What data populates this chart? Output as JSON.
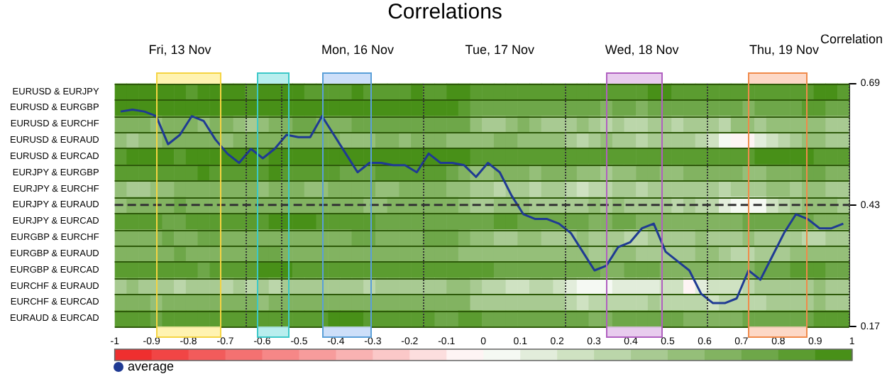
{
  "chart_data": {
    "type": "heatmap",
    "title": "Correlations",
    "y2label": "Correlation",
    "categories": [
      null,
      null,
      null,
      null,
      null,
      "Fri, 13 Nov",
      null,
      null,
      null,
      null,
      null,
      null,
      null,
      null,
      null,
      null,
      null,
      null,
      null,
      null,
      "Mon, 16 Nov",
      null,
      null,
      null,
      null,
      null,
      null,
      null,
      null,
      null,
      null,
      null,
      "Tue, 17 Nov",
      null,
      null,
      null,
      null,
      null,
      null,
      null,
      null,
      null,
      null,
      null,
      "Wed, 18 Nov",
      null,
      null,
      null,
      null,
      null,
      null,
      null,
      null,
      null,
      null,
      null,
      "Thu, 19 Nov",
      null,
      null,
      null,
      null,
      null
    ],
    "y_categories": [
      "EURUSD & EURJPY",
      "EURUSD & EURGBP",
      "EURUSD & EURCHF",
      "EURUSD & EURAUD",
      "EURUSD & EURCAD",
      "EURJPY & EURGBP",
      "EURJPY & EURCHF",
      "EURJPY & EURAUD",
      "EURJPY & EURCAD",
      "EURGBP & EURCHF",
      "EURGBP & EURAUD",
      "EURGBP & EURCAD",
      "EURCHF & EURAUD",
      "EURCHF & EURCAD",
      "EURAUD & EURCAD"
    ],
    "cells": [
      [
        0.9,
        0.9,
        0.9,
        0.9,
        0.9,
        0.9,
        0.8,
        0.9,
        0.9,
        0.9,
        0.9,
        0.8,
        0.9,
        0.9,
        0.9,
        0.9,
        0.8,
        0.8,
        0.8,
        0.8,
        0.9,
        0.8,
        0.8,
        0.8,
        0.8,
        0.9,
        0.8,
        0.8,
        0.9,
        0.9,
        0.8,
        0.8,
        0.8,
        0.8,
        0.8,
        0.8,
        0.8,
        0.8,
        0.8,
        0.8,
        0.8,
        0.8,
        0.8,
        0.8,
        0.8,
        0.9,
        0.9,
        0.8,
        0.8,
        0.8,
        0.8,
        0.8,
        0.8,
        0.8,
        0.8,
        0.8,
        0.8,
        0.8,
        0.8,
        0.9,
        0.9,
        0.8
      ],
      [
        0.9,
        0.9,
        0.9,
        0.9,
        0.9,
        0.9,
        0.9,
        0.9,
        0.9,
        0.9,
        0.9,
        0.9,
        0.9,
        0.9,
        0.9,
        0.9,
        0.9,
        0.9,
        0.9,
        0.9,
        0.9,
        0.9,
        0.9,
        0.9,
        0.9,
        0.9,
        0.9,
        0.9,
        0.9,
        0.8,
        0.7,
        0.7,
        0.7,
        0.7,
        0.7,
        0.7,
        0.7,
        0.7,
        0.7,
        0.7,
        0.7,
        0.6,
        0.7,
        0.7,
        0.6,
        0.7,
        0.7,
        0.7,
        0.7,
        0.7,
        0.7,
        0.7,
        0.7,
        0.6,
        0.7,
        0.7,
        0.7,
        0.7,
        0.8,
        0.8,
        0.7,
        0.7
      ],
      [
        0.6,
        0.6,
        0.6,
        0.5,
        0.6,
        0.6,
        0.6,
        0.5,
        0.6,
        0.6,
        0.5,
        0.4,
        0.5,
        0.6,
        0.6,
        0.7,
        0.7,
        0.6,
        0.6,
        0.6,
        0.7,
        0.7,
        0.7,
        0.7,
        0.7,
        0.7,
        0.7,
        0.7,
        0.7,
        0.7,
        0.5,
        0.4,
        0.4,
        0.5,
        0.6,
        0.5,
        0.4,
        0.4,
        0.4,
        0.5,
        0.4,
        0.3,
        0.4,
        0.3,
        0.3,
        0.4,
        0.4,
        0.3,
        0.4,
        0.4,
        0.4,
        0.3,
        0.5,
        0.5,
        0.4,
        0.5,
        0.5,
        0.5,
        0.5,
        0.5,
        0.4,
        0.4
      ],
      [
        0.5,
        0.4,
        0.5,
        0.5,
        0.6,
        0.6,
        0.6,
        0.6,
        0.6,
        0.5,
        0.6,
        0.6,
        0.6,
        0.6,
        0.6,
        0.6,
        0.6,
        0.6,
        0.6,
        0.5,
        0.5,
        0.5,
        0.6,
        0.6,
        0.5,
        0.6,
        0.6,
        0.6,
        0.5,
        0.5,
        0.5,
        0.5,
        0.6,
        0.6,
        0.5,
        0.5,
        0.5,
        0.5,
        0.4,
        0.3,
        0.4,
        0.5,
        0.4,
        0.4,
        0.3,
        0.4,
        0.4,
        0.4,
        0.4,
        0.3,
        0.2,
        0,
        -0.1,
        -0.1,
        0.1,
        0.2,
        0.3,
        0.4,
        0.5,
        0.5,
        0.4,
        0.4
      ],
      [
        0.8,
        0.9,
        0.9,
        0.9,
        0.9,
        0.8,
        0.9,
        0.9,
        0.9,
        0.9,
        0.9,
        0.9,
        0.8,
        0.9,
        0.9,
        0.9,
        0.9,
        0.9,
        0.9,
        0.9,
        0.9,
        0.9,
        0.9,
        0.9,
        0.9,
        0.9,
        0.9,
        0.9,
        0.9,
        0.9,
        0.8,
        0.8,
        0.8,
        0.8,
        0.8,
        0.8,
        0.8,
        0.8,
        0.8,
        0.8,
        0.8,
        0.8,
        0.8,
        0.8,
        0.8,
        0.8,
        0.8,
        0.8,
        0.8,
        0.8,
        0.8,
        0.8,
        0.8,
        0.8,
        0.9,
        0.9,
        0.9,
        0.9,
        0.9,
        0.8,
        0.8,
        0.8
      ],
      [
        0.8,
        0.8,
        0.8,
        0.8,
        0.8,
        0.8,
        0.8,
        0.9,
        0.8,
        0.8,
        0.8,
        0.8,
        0.8,
        0.9,
        0.8,
        0.8,
        0.8,
        0.8,
        0.8,
        0.7,
        0.7,
        0.7,
        0.8,
        0.8,
        0.8,
        0.8,
        0.8,
        0.8,
        0.7,
        0.6,
        0.5,
        0.5,
        0.6,
        0.6,
        0.6,
        0.5,
        0.6,
        0.6,
        0.6,
        0.5,
        0.5,
        0.4,
        0.5,
        0.5,
        0.6,
        0.6,
        0.5,
        0.5,
        0.6,
        0.6,
        0.6,
        0.6,
        0.6,
        0.5,
        0.5,
        0.6,
        0.6,
        0.6,
        0.7,
        0.7,
        0.6,
        0.6
      ],
      [
        0.5,
        0.4,
        0.4,
        0.5,
        0.5,
        0.6,
        0.6,
        0.6,
        0.6,
        0.6,
        0.6,
        0.6,
        0.5,
        0.6,
        0.6,
        0.6,
        0.5,
        0.5,
        0.6,
        0.6,
        0.6,
        0.6,
        0.5,
        0.5,
        0.6,
        0.6,
        0.6,
        0.6,
        0.5,
        0.5,
        0.4,
        0.4,
        0.3,
        0.4,
        0.4,
        0.3,
        0.4,
        0.4,
        0.3,
        0.2,
        0.3,
        0.3,
        0.4,
        0.4,
        0.3,
        0.4,
        0.4,
        0.4,
        0.4,
        0.4,
        0.4,
        0.3,
        0.4,
        0.4,
        0.4,
        0.5,
        0.5,
        0.4,
        0.5,
        0.5,
        0.4,
        0.4
      ],
      [
        0.5,
        0.6,
        0.6,
        0.6,
        0.6,
        0.7,
        0.6,
        0.6,
        0.6,
        0.6,
        0.6,
        0.6,
        0.6,
        0.6,
        0.6,
        0.6,
        0.6,
        0.6,
        0.6,
        0.6,
        0.6,
        0.5,
        0.5,
        0.6,
        0.6,
        0.6,
        0.6,
        0.6,
        0.6,
        0.5,
        0.4,
        0.4,
        0.5,
        0.5,
        0.5,
        0.4,
        0.4,
        0.4,
        0.4,
        0.4,
        0.5,
        0.4,
        0.5,
        0.4,
        0.4,
        0.4,
        0.4,
        0.3,
        0.4,
        0.3,
        0.3,
        0.1,
        0,
        0,
        0,
        0.2,
        0.3,
        0.4,
        0.5,
        0.5,
        0.5,
        0.4
      ],
      [
        0.8,
        0.8,
        0.8,
        0.8,
        0.7,
        0.7,
        0.8,
        0.8,
        0.8,
        0.8,
        0.8,
        0.8,
        0.8,
        0.9,
        0.9,
        0.9,
        0.9,
        0.8,
        0.8,
        0.8,
        0.8,
        0.8,
        0.7,
        0.7,
        0.7,
        0.7,
        0.7,
        0.7,
        0.7,
        0.7,
        0.7,
        0.7,
        0.8,
        0.8,
        0.7,
        0.7,
        0.7,
        0.7,
        0.7,
        0.7,
        0.6,
        0.6,
        0.7,
        0.7,
        0.6,
        0.6,
        0.6,
        0.6,
        0.6,
        0.6,
        0.6,
        0.6,
        0.6,
        0.7,
        0.7,
        0.7,
        0.7,
        0.7,
        0.7,
        0.6,
        0.6,
        0.6
      ],
      [
        0.6,
        0.6,
        0.6,
        0.6,
        0.7,
        0.6,
        0.6,
        0.7,
        0.7,
        0.6,
        0.6,
        0.6,
        0.6,
        0.6,
        0.6,
        0.6,
        0.6,
        0.6,
        0.6,
        0.6,
        0.7,
        0.7,
        0.6,
        0.6,
        0.6,
        0.6,
        0.7,
        0.7,
        0.7,
        0.6,
        0.5,
        0.5,
        0.4,
        0.4,
        0.5,
        0.5,
        0.4,
        0.4,
        0.4,
        0.5,
        0.4,
        0.4,
        0.4,
        0.3,
        0.3,
        0.4,
        0.4,
        0.4,
        0.4,
        0.5,
        0.4,
        0.4,
        0.4,
        0.5,
        0.4,
        0.4,
        0.4,
        0.4,
        0.3,
        0.3,
        0.4,
        0.4
      ],
      [
        0.6,
        0.6,
        0.6,
        0.6,
        0.6,
        0.7,
        0.6,
        0.6,
        0.6,
        0.6,
        0.6,
        0.6,
        0.7,
        0.7,
        0.6,
        0.6,
        0.6,
        0.6,
        0.6,
        0.6,
        0.6,
        0.6,
        0.6,
        0.6,
        0.6,
        0.6,
        0.6,
        0.6,
        0.6,
        0.5,
        0.5,
        0.5,
        0.5,
        0.5,
        0.5,
        0.5,
        0.5,
        0.5,
        0.5,
        0.5,
        0.4,
        0.4,
        0.5,
        0.5,
        0.4,
        0.4,
        0.4,
        0.4,
        0.4,
        0.5,
        0.5,
        0.4,
        0.3,
        0.3,
        0.4,
        0.4,
        0.4,
        0.5,
        0.5,
        0.5,
        0.5,
        0.5
      ],
      [
        0.8,
        0.8,
        0.8,
        0.8,
        0.8,
        0.8,
        0.8,
        0.7,
        0.8,
        0.8,
        0.8,
        0.8,
        0.9,
        0.9,
        0.9,
        0.8,
        0.8,
        0.8,
        0.8,
        0.8,
        0.8,
        0.8,
        0.8,
        0.8,
        0.8,
        0.8,
        0.8,
        0.8,
        0.8,
        0.8,
        0.8,
        0.8,
        0.7,
        0.7,
        0.7,
        0.7,
        0.7,
        0.7,
        0.7,
        0.7,
        0.7,
        0.6,
        0.6,
        0.7,
        0.7,
        0.7,
        0.6,
        0.6,
        0.6,
        0.6,
        0.6,
        0.6,
        0.6,
        0.6,
        0.7,
        0.7,
        0.7,
        0.8,
        0.8,
        0.8,
        0.7,
        0.7
      ],
      [
        0.4,
        0.5,
        0.4,
        0.4,
        0.4,
        0.3,
        0.4,
        0.4,
        0.4,
        0.3,
        0.4,
        0.3,
        0.4,
        0.3,
        0.4,
        0.4,
        0.4,
        0.4,
        0.4,
        0.4,
        0.4,
        0.3,
        0.4,
        0.4,
        0.4,
        0.4,
        0.4,
        0.4,
        0.5,
        0.5,
        0.4,
        0.3,
        0.3,
        0.2,
        0.2,
        0.3,
        0.3,
        0.2,
        0.1,
        0,
        0,
        0,
        0.1,
        0.1,
        0.1,
        0.1,
        0.2,
        0.2,
        -0.1,
        0.1,
        0.2,
        0.2,
        0.2,
        0.3,
        0.4,
        0.4,
        0.4,
        0.4,
        0.4,
        0.5,
        0.4,
        0.4
      ],
      [
        0.6,
        0.6,
        0.6,
        0.5,
        0.6,
        0.6,
        0.6,
        0.6,
        0.6,
        0.6,
        0.6,
        0.6,
        0.5,
        0.6,
        0.6,
        0.6,
        0.6,
        0.6,
        0.6,
        0.6,
        0.6,
        0.6,
        0.6,
        0.6,
        0.6,
        0.6,
        0.6,
        0.6,
        0.6,
        0.6,
        0.4,
        0.4,
        0.4,
        0.4,
        0.4,
        0.4,
        0.4,
        0.4,
        0.3,
        0.2,
        0.3,
        0.3,
        0.3,
        0.3,
        0.3,
        0.4,
        0.3,
        0.3,
        0.3,
        0.3,
        0.2,
        0.3,
        0.3,
        0.3,
        0.3,
        0.4,
        0.4,
        0.4,
        0.4,
        0.5,
        0.4,
        0.4
      ],
      [
        0.8,
        0.8,
        0.8,
        0.7,
        0.8,
        0.8,
        0.8,
        0.8,
        0.8,
        0.8,
        0.8,
        0.8,
        0.8,
        0.8,
        0.8,
        0.8,
        0.8,
        0.8,
        0.9,
        0.9,
        0.9,
        0.8,
        0.8,
        0.8,
        0.8,
        0.8,
        0.8,
        0.7,
        0.7,
        0.8,
        0.8,
        0.7,
        0.7,
        0.7,
        0.7,
        0.7,
        0.7,
        0.7,
        0.7,
        0.7,
        0.6,
        0.6,
        0.7,
        0.7,
        0.7,
        0.7,
        0.7,
        0.7,
        0.6,
        0.6,
        0.6,
        0.6,
        0.6,
        0.7,
        0.7,
        0.7,
        0.7,
        0.7,
        0.7,
        0.8,
        0.8,
        0.8
      ]
    ],
    "clim": [
      -1,
      1
    ],
    "cticks": [
      -1,
      -0.9,
      -0.8,
      -0.7,
      -0.6,
      -0.5,
      -0.4,
      -0.3,
      -0.2,
      -0.1,
      0,
      0.1,
      0.2,
      0.3,
      0.4,
      0.5,
      0.6,
      0.7,
      0.8,
      0.9,
      1
    ],
    "series": [
      {
        "name": "average",
        "type": "line",
        "axis": "y2",
        "color": "#1f3a93",
        "values": [
          0.63,
          0.634,
          0.63,
          0.62,
          0.56,
          0.58,
          0.62,
          0.61,
          0.57,
          0.54,
          0.52,
          0.55,
          0.53,
          0.55,
          0.58,
          0.575,
          0.575,
          0.62,
          0.58,
          0.54,
          0.5,
          0.52,
          0.52,
          0.515,
          0.515,
          0.5,
          0.54,
          0.52,
          0.52,
          0.515,
          0.49,
          0.52,
          0.5,
          0.45,
          0.41,
          0.4,
          0.4,
          0.39,
          0.37,
          0.33,
          0.29,
          0.3,
          0.34,
          0.35,
          0.38,
          0.39,
          0.33,
          0.31,
          0.29,
          0.24,
          0.22,
          0.22,
          0.23,
          0.29,
          0.27,
          0.32,
          0.37,
          0.41,
          0.4,
          0.38,
          0.38,
          0.39
        ]
      }
    ],
    "y2lim": [
      0.17,
      0.69
    ],
    "y2ticks": [
      0.17,
      0.43,
      0.69
    ],
    "ref_lines": [
      {
        "axis": "y2",
        "value": 0.43,
        "line_style": "dashed",
        "color": "#333333"
      }
    ],
    "grid": "y",
    "legend": "bottom left",
    "marker": "none",
    "line_style": "solid"
  }
}
